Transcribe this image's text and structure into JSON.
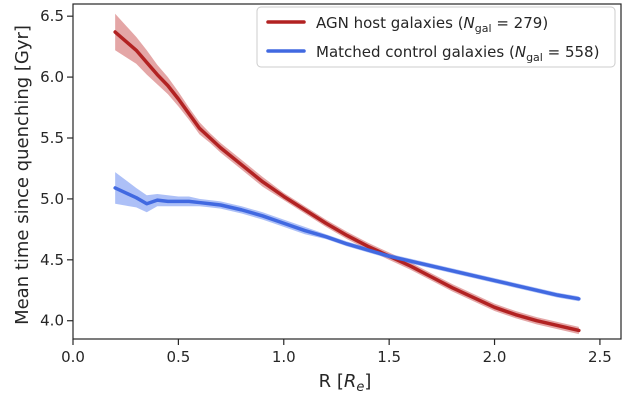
{
  "chart_data": {
    "type": "line",
    "xlabel": "R [",
    "xlabel_math": "R",
    "xlabel_sub": "e",
    "xlabel_close": "]",
    "ylabel": "Mean time since quenching [Gyr]",
    "xlim": [
      0.0,
      2.6
    ],
    "ylim": [
      3.85,
      6.6
    ],
    "xticks": [
      0.0,
      0.5,
      1.0,
      1.5,
      2.0,
      2.5
    ],
    "yticks": [
      4.0,
      4.5,
      5.0,
      5.5,
      6.0,
      6.5
    ],
    "legend_placement": "top-right",
    "series": [
      {
        "name": "AGN host galaxies",
        "legend_count": "279",
        "color": "#b22222",
        "band_color": "#cd5c5c",
        "x": [
          0.2,
          0.3,
          0.35,
          0.4,
          0.45,
          0.5,
          0.55,
          0.6,
          0.65,
          0.7,
          0.8,
          0.9,
          1.0,
          1.1,
          1.2,
          1.3,
          1.4,
          1.5,
          1.6,
          1.7,
          1.8,
          1.9,
          2.0,
          2.1,
          2.2,
          2.3,
          2.4
        ],
        "y": [
          6.37,
          6.22,
          6.12,
          6.02,
          5.93,
          5.82,
          5.7,
          5.58,
          5.5,
          5.42,
          5.28,
          5.14,
          5.02,
          4.91,
          4.8,
          4.7,
          4.61,
          4.53,
          4.45,
          4.36,
          4.27,
          4.19,
          4.11,
          4.05,
          4.0,
          3.96,
          3.92
        ],
        "upper": [
          6.52,
          6.33,
          6.22,
          6.1,
          6.0,
          5.88,
          5.75,
          5.63,
          5.54,
          5.46,
          5.32,
          5.18,
          5.05,
          4.94,
          4.83,
          4.73,
          4.64,
          4.56,
          4.48,
          4.39,
          4.3,
          4.22,
          4.14,
          4.08,
          4.03,
          3.99,
          3.95
        ],
        "lower": [
          6.22,
          6.11,
          6.02,
          5.94,
          5.86,
          5.76,
          5.65,
          5.53,
          5.46,
          5.38,
          5.24,
          5.1,
          4.99,
          4.88,
          4.77,
          4.67,
          4.58,
          4.5,
          4.42,
          4.33,
          4.24,
          4.16,
          4.08,
          4.02,
          3.97,
          3.93,
          3.89
        ]
      },
      {
        "name": "Matched control galaxies",
        "legend_count": "558",
        "color": "#4169e1",
        "band_color": "#6a8cf0",
        "x": [
          0.2,
          0.3,
          0.35,
          0.4,
          0.45,
          0.5,
          0.55,
          0.6,
          0.65,
          0.7,
          0.8,
          0.9,
          1.0,
          1.1,
          1.2,
          1.3,
          1.4,
          1.5,
          1.6,
          1.7,
          1.8,
          1.9,
          2.0,
          2.1,
          2.2,
          2.3,
          2.4
        ],
        "y": [
          5.09,
          5.01,
          4.96,
          4.99,
          4.98,
          4.98,
          4.98,
          4.97,
          4.96,
          4.95,
          4.91,
          4.86,
          4.8,
          4.74,
          4.69,
          4.63,
          4.58,
          4.53,
          4.49,
          4.45,
          4.41,
          4.37,
          4.33,
          4.29,
          4.25,
          4.21,
          4.18
        ],
        "upper": [
          5.22,
          5.09,
          5.03,
          5.04,
          5.03,
          5.02,
          5.02,
          5.0,
          4.99,
          4.98,
          4.94,
          4.89,
          4.83,
          4.77,
          4.71,
          4.65,
          4.6,
          4.55,
          4.51,
          4.47,
          4.43,
          4.39,
          4.35,
          4.31,
          4.27,
          4.23,
          4.2
        ],
        "lower": [
          4.96,
          4.93,
          4.89,
          4.94,
          4.94,
          4.94,
          4.94,
          4.94,
          4.93,
          4.92,
          4.88,
          4.83,
          4.77,
          4.71,
          4.67,
          4.61,
          4.56,
          4.51,
          4.47,
          4.43,
          4.39,
          4.35,
          4.31,
          4.27,
          4.23,
          4.19,
          4.16
        ]
      }
    ]
  }
}
